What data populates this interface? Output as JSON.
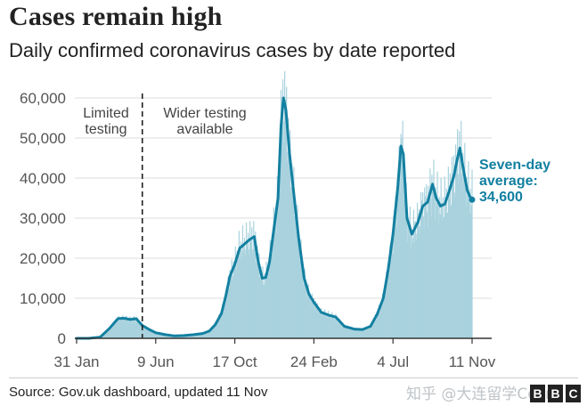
{
  "title": "Cases remain high",
  "subtitle": "Daily confirmed coronavirus cases by date reported",
  "source": "Source: Gov.uk dashboard, updated 11 Nov",
  "watermark": "知乎 @大连留学Colin",
  "logo": [
    "B",
    "B",
    "C"
  ],
  "colors": {
    "line": "#1380A1",
    "bars": "#A9D2DE",
    "text": "#222222",
    "axis": "#555555"
  },
  "chart_data": {
    "type": "line",
    "title": "Cases remain high",
    "subtitle": "Daily confirmed coronavirus cases by date reported",
    "xlabel": "",
    "ylabel": "",
    "ylim": [
      0,
      60000
    ],
    "y_ticks": [
      0,
      10000,
      20000,
      30000,
      40000,
      50000,
      60000
    ],
    "y_tick_labels": [
      "0",
      "10,000",
      "20,000",
      "30,000",
      "40,000",
      "50,000",
      "60,000"
    ],
    "x_tick_labels": [
      "31 Jan",
      "9 Jun",
      "17 Oct",
      "24 Feb",
      "4 Jul",
      "11 Nov"
    ],
    "x_tick_dates": [
      "2020-01-31",
      "2020-06-09",
      "2020-10-17",
      "2021-02-24",
      "2021-07-04",
      "2021-11-11"
    ],
    "grid": true,
    "annotations": {
      "limited_testing": [
        "Limited",
        "testing"
      ],
      "wider_testing": [
        "Wider testing",
        "available"
      ],
      "divider_date": "2020-05-18",
      "seven_day_average": [
        "Seven-day",
        "average:",
        "34,600"
      ]
    },
    "series": [
      {
        "name": "Seven-day average",
        "points": [
          [
            "2020-01-31",
            0
          ],
          [
            "2020-02-20",
            0
          ],
          [
            "2020-03-10",
            300
          ],
          [
            "2020-03-25",
            2500
          ],
          [
            "2020-04-08",
            4900
          ],
          [
            "2020-04-18",
            5000
          ],
          [
            "2020-04-28",
            4700
          ],
          [
            "2020-05-08",
            4900
          ],
          [
            "2020-05-18",
            3200
          ],
          [
            "2020-05-28",
            2300
          ],
          [
            "2020-06-09",
            1400
          ],
          [
            "2020-06-25",
            900
          ],
          [
            "2020-07-10",
            600
          ],
          [
            "2020-07-25",
            700
          ],
          [
            "2020-08-10",
            900
          ],
          [
            "2020-08-25",
            1200
          ],
          [
            "2020-09-05",
            1800
          ],
          [
            "2020-09-15",
            3400
          ],
          [
            "2020-09-25",
            6200
          ],
          [
            "2020-10-02",
            10500
          ],
          [
            "2020-10-09",
            15500
          ],
          [
            "2020-10-17",
            18500
          ],
          [
            "2020-10-25",
            22500
          ],
          [
            "2020-11-04",
            23800
          ],
          [
            "2020-11-10",
            24600
          ],
          [
            "2020-11-18",
            25400
          ],
          [
            "2020-11-24",
            19500
          ],
          [
            "2020-12-01",
            15000
          ],
          [
            "2020-12-07",
            15200
          ],
          [
            "2020-12-13",
            19000
          ],
          [
            "2020-12-20",
            27000
          ],
          [
            "2020-12-27",
            35000
          ],
          [
            "2021-01-01",
            53000
          ],
          [
            "2021-01-05",
            60000
          ],
          [
            "2021-01-09",
            57000
          ],
          [
            "2021-01-15",
            46000
          ],
          [
            "2021-01-22",
            36000
          ],
          [
            "2021-01-30",
            25000
          ],
          [
            "2021-02-08",
            15000
          ],
          [
            "2021-02-16",
            11000
          ],
          [
            "2021-02-24",
            9000
          ],
          [
            "2021-03-08",
            6500
          ],
          [
            "2021-03-20",
            5800
          ],
          [
            "2021-04-01",
            5300
          ],
          [
            "2021-04-15",
            3000
          ],
          [
            "2021-05-01",
            2300
          ],
          [
            "2021-05-15",
            2200
          ],
          [
            "2021-05-28",
            3000
          ],
          [
            "2021-06-08",
            6000
          ],
          [
            "2021-06-18",
            10000
          ],
          [
            "2021-06-26",
            17000
          ],
          [
            "2021-07-04",
            26000
          ],
          [
            "2021-07-12",
            38000
          ],
          [
            "2021-07-17",
            48000
          ],
          [
            "2021-07-21",
            46000
          ],
          [
            "2021-07-27",
            30000
          ],
          [
            "2021-08-04",
            26000
          ],
          [
            "2021-08-14",
            29000
          ],
          [
            "2021-08-22",
            33000
          ],
          [
            "2021-08-30",
            34000
          ],
          [
            "2021-09-07",
            38500
          ],
          [
            "2021-09-13",
            35000
          ],
          [
            "2021-09-20",
            33000
          ],
          [
            "2021-09-27",
            33500
          ],
          [
            "2021-10-05",
            37000
          ],
          [
            "2021-10-12",
            40500
          ],
          [
            "2021-10-18",
            45000
          ],
          [
            "2021-10-22",
            47500
          ],
          [
            "2021-10-28",
            42000
          ],
          [
            "2021-11-03",
            37000
          ],
          [
            "2021-11-07",
            35500
          ],
          [
            "2021-11-11",
            34600
          ]
        ]
      }
    ]
  }
}
